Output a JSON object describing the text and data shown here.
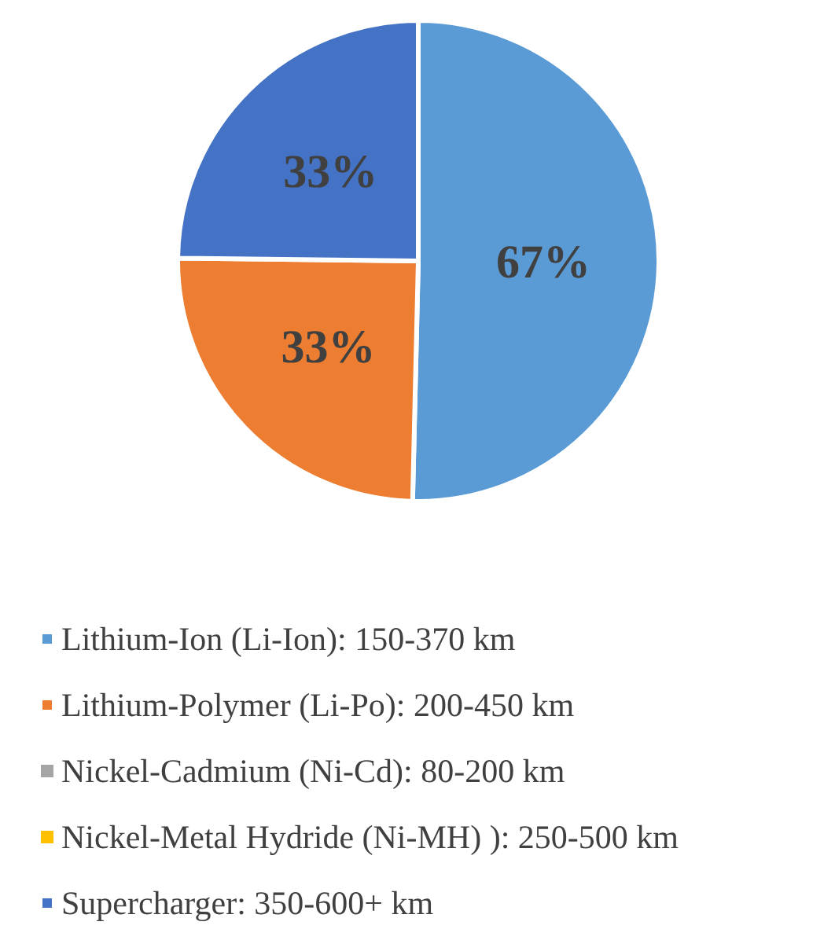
{
  "chart_data": {
    "type": "pie",
    "categories": [
      "Lithium-Ion (Li-Ion): 150-370 km",
      "Lithium-Polymer (Li-Po): 200-450 km",
      "Nickel-Cadmium (Ni-Cd): 80-200 km",
      "Nickel-Metal Hydride (Ni-MH) ): 250-500 km",
      "Supercharger: 350-600+ km"
    ],
    "values": [
      67,
      33,
      0,
      0,
      33
    ],
    "colors": [
      "#5b9bd5",
      "#ed7d31",
      "#a5a5a5",
      "#ffc000",
      "#4472c4"
    ],
    "value_labels": [
      "67%",
      "33%",
      null,
      null,
      "33%"
    ],
    "legend": "bottom"
  }
}
